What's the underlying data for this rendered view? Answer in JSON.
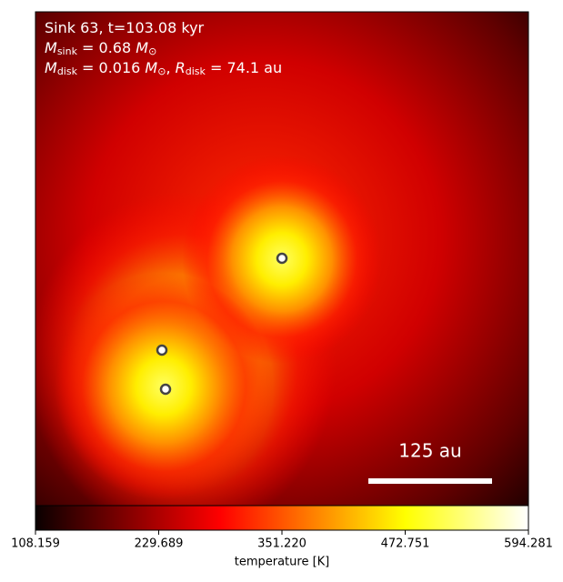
{
  "chart_data": {
    "type": "heatmap",
    "annotation_lines": [
      [
        {
          "text": "Sink 63, t=103.08 kyr"
        }
      ],
      [
        {
          "text": "M",
          "style": "italic"
        },
        {
          "text": "sink",
          "sub": true
        },
        {
          "text": " = 0.68 "
        },
        {
          "text": "M",
          "style": "italic"
        },
        {
          "text": "⊙",
          "sub": true
        }
      ],
      [
        {
          "text": "M",
          "style": "italic"
        },
        {
          "text": "disk",
          "sub": true
        },
        {
          "text": " = 0.016 "
        },
        {
          "text": "M",
          "style": "italic"
        },
        {
          "text": "⊙",
          "sub": true
        },
        {
          "text": ", "
        },
        {
          "text": "R",
          "style": "italic"
        },
        {
          "text": "disk",
          "sub": true
        },
        {
          "text": " = 74.1 au"
        }
      ]
    ],
    "scale_bar_label": "125 au",
    "colorbar": {
      "label": "temperature [K]",
      "colormap": "hot",
      "lim": [
        108.159,
        594.281
      ],
      "ticks": [
        108.159,
        229.689,
        {
          "value": 351.22,
          "label": "351.220"
        },
        472.751,
        594.281
      ]
    }
  }
}
